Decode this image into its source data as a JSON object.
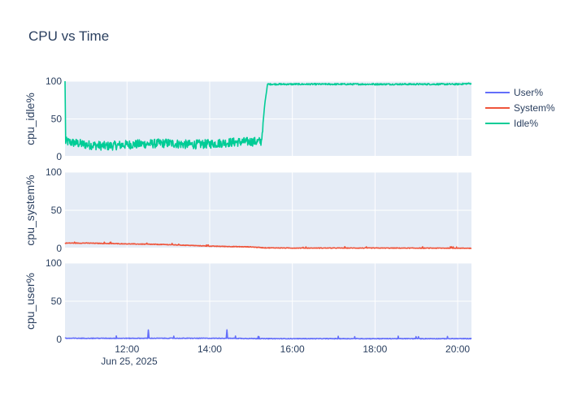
{
  "chart_data": {
    "type": "line",
    "title": "CPU vs Time",
    "x_axis": {
      "start": "2025-06-25 10:30",
      "end": "2025-06-25 20:20",
      "tick_labels": [
        "12:00",
        "14:00",
        "16:00",
        "18:00",
        "20:00"
      ],
      "date_label": "Jun 25, 2025"
    },
    "grid": true,
    "legend_position": "right",
    "legend": [
      {
        "name": "User%",
        "color": "#636efa"
      },
      {
        "name": "System%",
        "color": "#ef553b"
      },
      {
        "name": "Idle%",
        "color": "#00cc96"
      }
    ],
    "panels": [
      {
        "key": "idle",
        "ylabel": "cpu_idle%",
        "ylim": [
          0,
          100
        ],
        "y_ticks": [
          "0",
          "50",
          "100"
        ],
        "series": "Idle%",
        "color": "#00cc96",
        "points": [
          [
            "2025-06-25 10:30",
            100
          ],
          [
            "2025-06-25 10:31",
            20
          ],
          [
            "2025-06-25 11:00",
            16
          ],
          [
            "2025-06-25 11:30",
            14
          ],
          [
            "2025-06-25 12:00",
            16
          ],
          [
            "2025-06-25 12:30",
            17
          ],
          [
            "2025-06-25 13:00",
            18
          ],
          [
            "2025-06-25 13:30",
            16
          ],
          [
            "2025-06-25 14:00",
            17
          ],
          [
            "2025-06-25 14:30",
            19
          ],
          [
            "2025-06-25 15:00",
            20
          ],
          [
            "2025-06-25 15:15",
            20
          ],
          [
            "2025-06-25 15:20",
            70
          ],
          [
            "2025-06-25 15:24",
            96
          ],
          [
            "2025-06-25 16:00",
            96
          ],
          [
            "2025-06-25 17:00",
            96
          ],
          [
            "2025-06-25 18:00",
            96
          ],
          [
            "2025-06-25 19:00",
            96
          ],
          [
            "2025-06-25 20:00",
            96
          ],
          [
            "2025-06-25 20:20",
            97
          ]
        ]
      },
      {
        "key": "system",
        "ylabel": "cpu_system%",
        "ylim": [
          0,
          100
        ],
        "y_ticks": [
          "0",
          "50",
          "100"
        ],
        "series": "System%",
        "color": "#ef553b",
        "points": [
          [
            "2025-06-25 10:30",
            7
          ],
          [
            "2025-06-25 11:00",
            7
          ],
          [
            "2025-06-25 12:00",
            6
          ],
          [
            "2025-06-25 13:00",
            5
          ],
          [
            "2025-06-25 14:00",
            3
          ],
          [
            "2025-06-25 15:00",
            2
          ],
          [
            "2025-06-25 15:20",
            0.8
          ],
          [
            "2025-06-25 16:00",
            0.5
          ],
          [
            "2025-06-25 18:00",
            0.5
          ],
          [
            "2025-06-25 20:20",
            0.3
          ]
        ]
      },
      {
        "key": "user",
        "ylabel": "cpu_user%",
        "ylim": [
          0,
          100
        ],
        "y_ticks": [
          "0",
          "50",
          "100"
        ],
        "series": "User%",
        "color": "#636efa",
        "points": [
          [
            "2025-06-25 10:30",
            1
          ],
          [
            "2025-06-25 11:00",
            1
          ],
          [
            "2025-06-25 12:00",
            1
          ],
          [
            "2025-06-25 12:30",
            1
          ],
          [
            "2025-06-25 12:31",
            12
          ],
          [
            "2025-06-25 12:32",
            1
          ],
          [
            "2025-06-25 14:00",
            1
          ],
          [
            "2025-06-25 14:24",
            1
          ],
          [
            "2025-06-25 14:25",
            12
          ],
          [
            "2025-06-25 14:26",
            1
          ],
          [
            "2025-06-25 15:20",
            0.5
          ],
          [
            "2025-06-25 17:00",
            0.5
          ],
          [
            "2025-06-25 18:00",
            0.5
          ],
          [
            "2025-06-25 20:20",
            0.5
          ]
        ]
      }
    ]
  }
}
